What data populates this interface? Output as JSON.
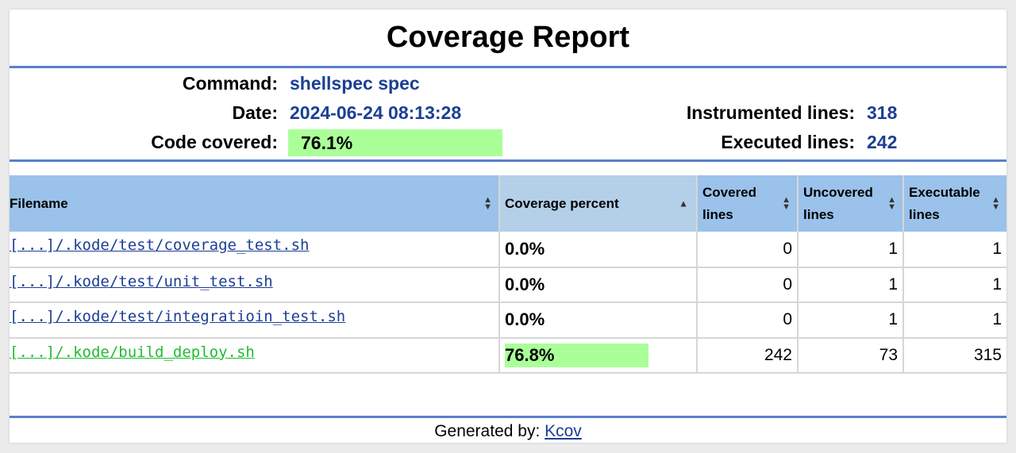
{
  "title": "Coverage Report",
  "info": {
    "command_label": "Command:",
    "command_value": "shellspec spec",
    "date_label": "Date:",
    "date_value": "2024-06-24 08:13:28",
    "covered_label": "Code covered:",
    "covered_value": "76.1%",
    "instrumented_label": "Instrumented lines:",
    "instrumented_value": "318",
    "executed_label": "Executed lines:",
    "executed_value": "242"
  },
  "table": {
    "headers": {
      "filename": "Filename",
      "coverage": "Coverage percent",
      "covered": "Covered lines",
      "uncovered": "Uncovered lines",
      "executable": "Executable lines"
    },
    "rows": [
      {
        "file": "[...]/.kode/test/coverage_test.sh",
        "pct": "0.0%",
        "covered": "0",
        "uncovered": "1",
        "executable": "1"
      },
      {
        "file": "[...]/.kode/test/unit_test.sh",
        "pct": "0.0%",
        "covered": "0",
        "uncovered": "1",
        "executable": "1"
      },
      {
        "file": "[...]/.kode/test/integratioin_test.sh",
        "pct": "0.0%",
        "covered": "0",
        "uncovered": "1",
        "executable": "1"
      },
      {
        "file": "[...]/.kode/build_deploy.sh",
        "pct": "76.8%",
        "covered": "242",
        "uncovered": "73",
        "executable": "315"
      }
    ]
  },
  "footer": {
    "label": "Generated by:",
    "link": "Kcov"
  },
  "colors": {
    "accent_rule": "#5a7fcc",
    "header_bg": "#9ac2ea",
    "covered_bar": "#aaff99",
    "link": "#1c3f95",
    "high_coverage_link": "#22bb33"
  }
}
